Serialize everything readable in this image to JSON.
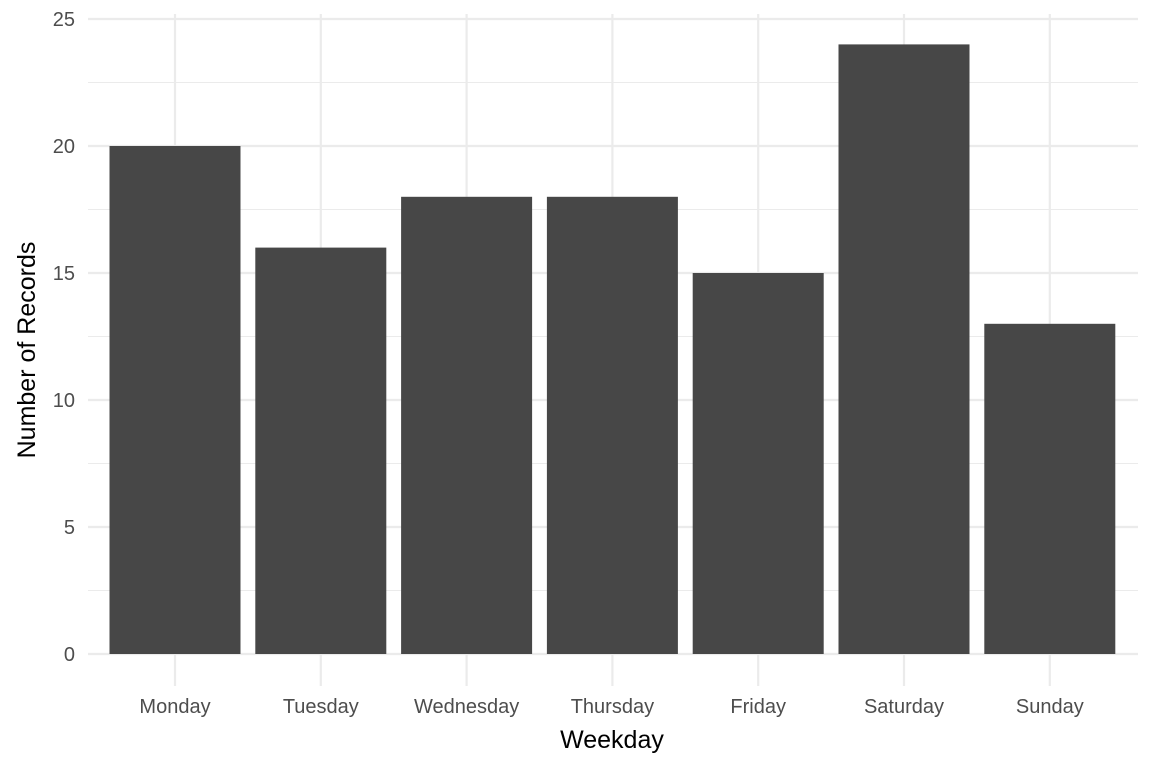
{
  "chart_data": {
    "type": "bar",
    "title": "",
    "xlabel": "Weekday",
    "ylabel": "Number of Records",
    "categories": [
      "Monday",
      "Tuesday",
      "Wednesday",
      "Thursday",
      "Friday",
      "Saturday",
      "Sunday"
    ],
    "values": [
      20,
      16,
      18,
      18,
      15,
      24,
      13
    ],
    "ylim": [
      0,
      25
    ],
    "yticks": [
      0,
      5,
      10,
      15,
      20,
      25
    ],
    "grid": true,
    "legend": "none",
    "bar_color": "#474747"
  }
}
